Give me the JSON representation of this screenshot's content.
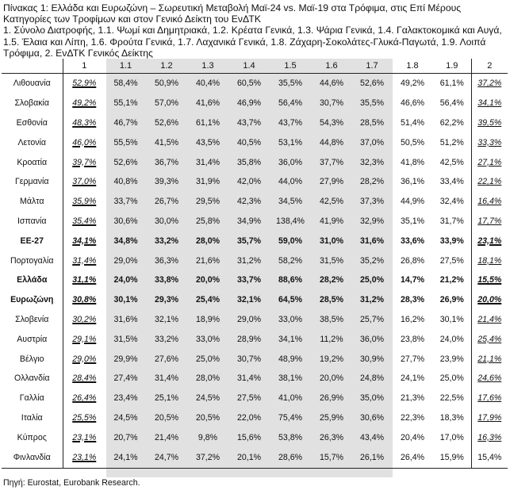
{
  "title_lines": [
    "Πίνακας 1: Ελλάδα και Ευρωζώνη – Σωρευτική Μεταβολή Μαϊ-24 vs. Μαϊ-19 στα Τρόφιμα, στις Επί Μέρους",
    "Κατηγορίες των Τροφίμων και στον Γενικό Δείκτη του ΕνΔΤΚ",
    "1. Σύνολο Διατροφής, 1.1. Ψωμί και Δημητριακά, 1.2. Κρέατα Γενικά, 1.3. Ψάρια Γενικά, 1.4. Γαλακτοκομικά και Αυγά,",
    "1.5. Έλαια και Λίπη, 1.6. Φρούτα Γενικά, 1.7. Λαχανικά Γενικά, 1.8. Ζάχαρη-Σοκολάτες-Γλυκά-Παγωτά, 1.9. Λοιπά",
    "Τρόφιμα, 2. ΕνΔΤΚ Γενικός Δείκτης"
  ],
  "columns": [
    "",
    "1",
    "1.1",
    "1.2",
    "1.3",
    "1.4",
    "1.5",
    "1.6",
    "1.7",
    "1.8",
    "1.9",
    "2"
  ],
  "rows": [
    {
      "name": "Λιθουανία",
      "bold": false,
      "v": [
        "52,9%",
        "58,4%",
        "50,9%",
        "40,4%",
        "60,5%",
        "35,5%",
        "44,6%",
        "52,6%",
        "49,2%",
        "61,1%",
        "37,2%"
      ]
    },
    {
      "name": "Σλοβακία",
      "bold": false,
      "v": [
        "49,2%",
        "55,1%",
        "57,0%",
        "41,6%",
        "46,9%",
        "56,4%",
        "30,7%",
        "35,5%",
        "46,6%",
        "56,4%",
        "34,1%"
      ]
    },
    {
      "name": "Εσθονία",
      "bold": false,
      "v": [
        "48,3%",
        "46,7%",
        "52,6%",
        "61,1%",
        "43,7%",
        "43,7%",
        "54,3%",
        "28,5%",
        "51,4%",
        "62,2%",
        "39,5%"
      ]
    },
    {
      "name": "Λετονία",
      "bold": false,
      "v": [
        "46,0%",
        "55,5%",
        "41,5%",
        "43,5%",
        "40,5%",
        "53,1%",
        "44,8%",
        "37,0%",
        "50,5%",
        "51,2%",
        "33,3%"
      ]
    },
    {
      "name": "Κροατία",
      "bold": false,
      "v": [
        "39,7%",
        "52,6%",
        "36,7%",
        "31,4%",
        "35,8%",
        "36,0%",
        "37,7%",
        "32,3%",
        "41,8%",
        "42,5%",
        "27,1%"
      ]
    },
    {
      "name": "Γερμανία",
      "bold": false,
      "v": [
        "37,0%",
        "40,8%",
        "39,3%",
        "31,9%",
        "42,0%",
        "44,0%",
        "27,9%",
        "28,2%",
        "36,1%",
        "33,4%",
        "22,1%"
      ]
    },
    {
      "name": "Μάλτα",
      "bold": false,
      "v": [
        "35,9%",
        "33,7%",
        "26,7%",
        "29,5%",
        "42,3%",
        "34,5%",
        "42,5%",
        "37,3%",
        "44,9%",
        "32,4%",
        "16,4%"
      ]
    },
    {
      "name": "Ισπανία",
      "bold": false,
      "v": [
        "35,4%",
        "30,6%",
        "30,0%",
        "25,8%",
        "34,9%",
        "138,4%",
        "41,9%",
        "32,9%",
        "35,1%",
        "31,7%",
        "17,7%"
      ]
    },
    {
      "name": "ΕΕ-27",
      "bold": true,
      "v": [
        "34,1%",
        "34,8%",
        "33,2%",
        "28,0%",
        "35,7%",
        "59,0%",
        "31,0%",
        "31,6%",
        "33,6%",
        "33,9%",
        "23,1%"
      ]
    },
    {
      "name": "Πορτογαλία",
      "bold": false,
      "v": [
        "31,4%",
        "29,0%",
        "36,3%",
        "21,6%",
        "31,2%",
        "58,2%",
        "31,5%",
        "35,2%",
        "26,8%",
        "27,5%",
        "18,1%"
      ]
    },
    {
      "name": "Ελλάδα",
      "bold": true,
      "v": [
        "31,1%",
        "24,0%",
        "33,8%",
        "20,0%",
        "33,7%",
        "88,6%",
        "28,2%",
        "25,0%",
        "14,7%",
        "21,2%",
        "15,5%"
      ]
    },
    {
      "name": "Ευρωζώνη",
      "bold": true,
      "v": [
        "30,8%",
        "30,1%",
        "29,3%",
        "25,4%",
        "32,1%",
        "64,5%",
        "28,5%",
        "31,2%",
        "28,3%",
        "26,9%",
        "20,0%"
      ]
    },
    {
      "name": "Σλοβενία",
      "bold": false,
      "v": [
        "30,2%",
        "31,6%",
        "32,1%",
        "18,9%",
        "29,0%",
        "33,0%",
        "38,5%",
        "25,7%",
        "16,2%",
        "30,1%",
        "21,4%"
      ]
    },
    {
      "name": "Αυστρία",
      "bold": false,
      "v": [
        "29,1%",
        "31,5%",
        "33,2%",
        "33,0%",
        "28,9%",
        "34,1%",
        "11,2%",
        "36,0%",
        "23,8%",
        "24,0%",
        "25,4%"
      ]
    },
    {
      "name": "Βέλγιο",
      "bold": false,
      "v": [
        "29,0%",
        "29,9%",
        "27,6%",
        "25,0%",
        "30,7%",
        "48,9%",
        "19,2%",
        "30,9%",
        "27,7%",
        "23,9%",
        "21,1%"
      ]
    },
    {
      "name": "Ολλανδία",
      "bold": false,
      "v": [
        "28,4%",
        "27,4%",
        "31,4%",
        "28,0%",
        "31,4%",
        "38,1%",
        "20,0%",
        "24,8%",
        "24,1%",
        "25,0%",
        "24,6%"
      ]
    },
    {
      "name": "Γαλλία",
      "bold": false,
      "v": [
        "26,4%",
        "23,4%",
        "25,1%",
        "24,5%",
        "27,5%",
        "41,0%",
        "26,9%",
        "35,0%",
        "21,3%",
        "22,5%",
        "17,6%"
      ]
    },
    {
      "name": "Ιταλία",
      "bold": false,
      "v": [
        "25,5%",
        "24,5%",
        "20,5%",
        "20,5%",
        "22,0%",
        "75,4%",
        "25,9%",
        "30,6%",
        "22,3%",
        "18,3%",
        "17,9%"
      ]
    },
    {
      "name": "Κύπρος",
      "bold": false,
      "v": [
        "23,1%",
        "20,7%",
        "21,4%",
        "9,8%",
        "15,6%",
        "53,8%",
        "26,3%",
        "43,4%",
        "20,4%",
        "17,0%",
        "16,3%"
      ]
    },
    {
      "name": "Φινλανδία",
      "bold": false,
      "v": [
        "23,1%",
        "24,1%",
        "24,7%",
        "37,2%",
        "20,1%",
        "28,6%",
        "15,7%",
        "26,1%",
        "26,4%",
        "15,9%",
        "15,4%"
      ]
    }
  ],
  "source": "Πηγή: Eurostat, Eurobank Research."
}
